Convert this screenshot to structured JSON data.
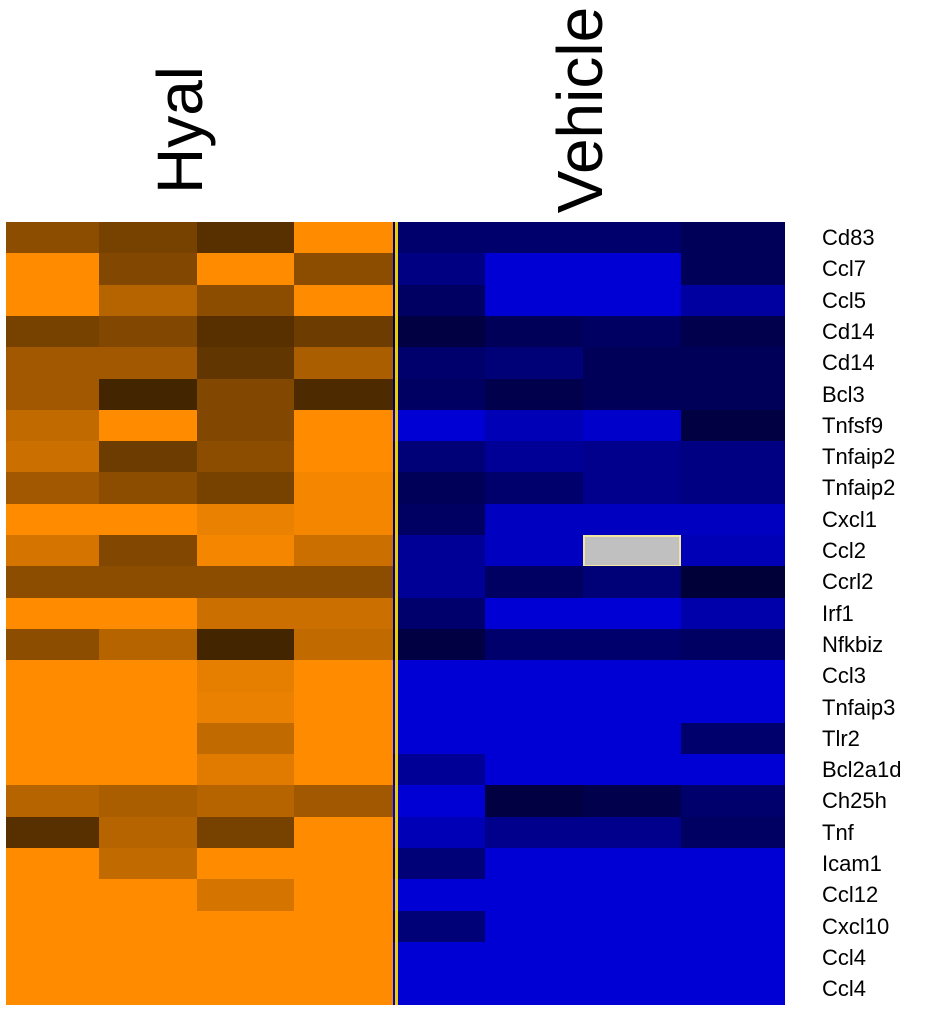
{
  "chart_data": {
    "type": "heatmap",
    "title": "",
    "column_groups": [
      {
        "name": "Hyal",
        "columns": 4
      },
      {
        "name": "Vehicle",
        "columns": 4
      }
    ],
    "rows": [
      "Cd83",
      "Ccl7",
      "Ccl5",
      "Cd14",
      "Cd14",
      "Bcl3",
      "Tnfsf9",
      "Tnfaip2",
      "Tnfaip2",
      "Cxcl1",
      "Ccl2",
      "Ccrl2",
      "Irf1",
      "Nfkbiz",
      "Ccl3",
      "Tnfaip3",
      "Tlr2",
      "Bcl2a1d",
      "Ch25h",
      "Tnf",
      "Icam1",
      "Ccl12",
      "Cxcl10",
      "Ccl4",
      "Ccl4"
    ],
    "value_range": [
      -1,
      1
    ],
    "colors": {
      "high": "#ff8c00",
      "low": "#0000ff",
      "missing": "#c0c0c0"
    },
    "values": [
      [
        0.55,
        0.65,
        0.8,
        0.0,
        -0.7,
        -0.7,
        -0.7,
        -0.8
      ],
      [
        0.0,
        0.6,
        0.0,
        0.55,
        -0.6,
        -0.2,
        -0.2,
        -0.8
      ],
      [
        0.0,
        0.35,
        0.55,
        0.0,
        -0.75,
        -0.2,
        -0.2,
        -0.45
      ],
      [
        0.65,
        0.6,
        0.8,
        0.7,
        -0.9,
        -0.8,
        -0.75,
        -0.85
      ],
      [
        0.45,
        0.45,
        0.75,
        0.4,
        -0.7,
        -0.65,
        -0.8,
        -0.8
      ],
      [
        0.45,
        0.9,
        0.6,
        0.85,
        -0.75,
        -0.85,
        -0.8,
        -0.8
      ],
      [
        0.3,
        0.0,
        0.6,
        0.0,
        -0.2,
        -0.35,
        -0.25,
        -0.9
      ],
      [
        0.25,
        0.7,
        0.55,
        0.0,
        -0.65,
        -0.5,
        -0.55,
        -0.6
      ],
      [
        0.45,
        0.55,
        0.65,
        0.05,
        -0.8,
        -0.7,
        -0.55,
        -0.6
      ],
      [
        0.0,
        0.0,
        0.1,
        0.05,
        -0.75,
        -0.3,
        -0.3,
        -0.3
      ],
      [
        0.2,
        0.6,
        0.05,
        0.25,
        -0.5,
        -0.3,
        null,
        -0.35
      ],
      [
        0.55,
        0.55,
        0.55,
        0.55,
        -0.5,
        -0.75,
        -0.65,
        -0.95
      ],
      [
        0.0,
        0.0,
        0.25,
        0.25,
        -0.7,
        -0.2,
        -0.2,
        -0.4
      ],
      [
        0.55,
        0.35,
        0.9,
        0.3,
        -0.9,
        -0.7,
        -0.7,
        -0.75
      ],
      [
        0.0,
        0.0,
        0.12,
        0.0,
        -0.2,
        -0.2,
        -0.2,
        -0.2
      ],
      [
        0.0,
        0.0,
        0.1,
        0.0,
        -0.2,
        -0.2,
        -0.2,
        -0.2
      ],
      [
        0.0,
        0.0,
        0.3,
        0.0,
        -0.2,
        -0.2,
        -0.2,
        -0.7
      ],
      [
        0.0,
        0.0,
        0.15,
        0.0,
        -0.5,
        -0.2,
        -0.2,
        -0.2
      ],
      [
        0.35,
        0.4,
        0.35,
        0.45,
        -0.2,
        -0.9,
        -0.85,
        -0.7
      ],
      [
        0.8,
        0.35,
        0.65,
        0.0,
        -0.35,
        -0.55,
        -0.55,
        -0.75
      ],
      [
        0.0,
        0.3,
        0.0,
        0.0,
        -0.65,
        -0.2,
        -0.2,
        -0.2
      ],
      [
        0.0,
        0.0,
        0.2,
        0.0,
        -0.2,
        -0.2,
        -0.2,
        -0.2
      ],
      [
        0.0,
        0.0,
        0.0,
        0.0,
        -0.65,
        -0.2,
        -0.2,
        -0.2
      ],
      [
        0.0,
        0.0,
        0.0,
        0.0,
        -0.2,
        -0.2,
        -0.2,
        -0.2
      ],
      [
        0.0,
        0.0,
        0.0,
        0.0,
        -0.2,
        -0.2,
        -0.2,
        -0.2
      ]
    ]
  }
}
